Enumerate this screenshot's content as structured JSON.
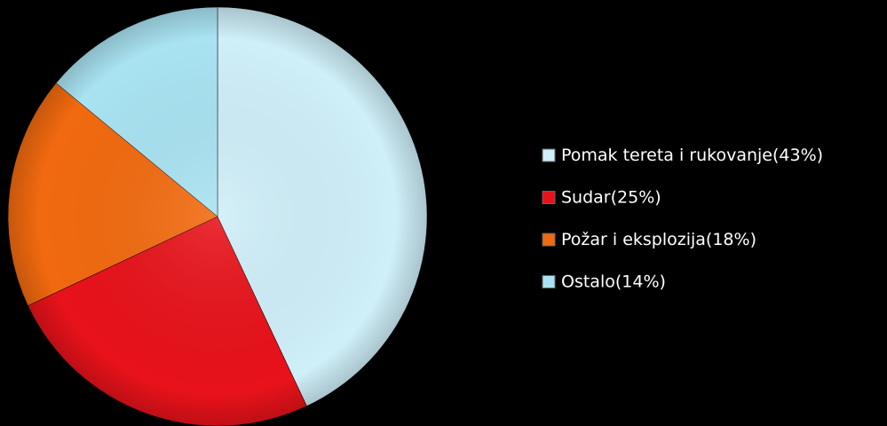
{
  "chart_data": {
    "type": "pie",
    "categories": [
      "Pomak tereta i rukovanje",
      "Sudar",
      "Požar i eksplozija",
      "Ostalo"
    ],
    "values": [
      43,
      25,
      18,
      14
    ],
    "value_labels": [
      "(43%)",
      "(25%)",
      "(18%)",
      "(14%)"
    ],
    "colors": [
      "#cfeff9",
      "#e8121a",
      "#f26a0f",
      "#a9e3f2"
    ],
    "legend": "right"
  }
}
